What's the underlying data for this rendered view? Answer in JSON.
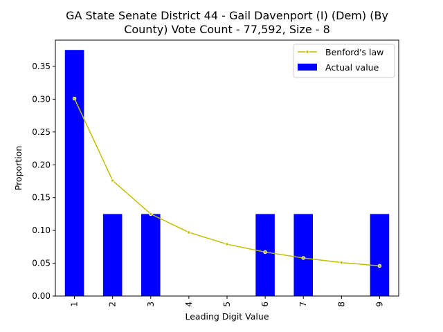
{
  "chart_data": {
    "type": "bar",
    "title_lines": [
      "GA State Senate District 44 - Gail Davenport (I) (Dem) (By",
      "County) Vote Count - 77,592, Size - 8"
    ],
    "xlabel": "Leading Digit Value",
    "ylabel": "Proportion",
    "categories": [
      "1",
      "2",
      "3",
      "4",
      "5",
      "6",
      "7",
      "8",
      "9"
    ],
    "yticks": [
      "0.00",
      "0.05",
      "0.10",
      "0.15",
      "0.20",
      "0.25",
      "0.30",
      "0.35"
    ],
    "ylim": [
      0,
      0.39
    ],
    "series": [
      {
        "name": "Actual value",
        "kind": "bar",
        "color": "#0000ff",
        "values": [
          0.375,
          0.125,
          0.125,
          0,
          0,
          0.125,
          0.125,
          0,
          0.125
        ]
      },
      {
        "name": "Benford's law",
        "kind": "line",
        "color": "#bfbf00",
        "values": [
          0.301,
          0.176,
          0.125,
          0.097,
          0.079,
          0.067,
          0.058,
          0.051,
          0.046
        ]
      }
    ],
    "legend_position": "top-right",
    "grid": false
  }
}
